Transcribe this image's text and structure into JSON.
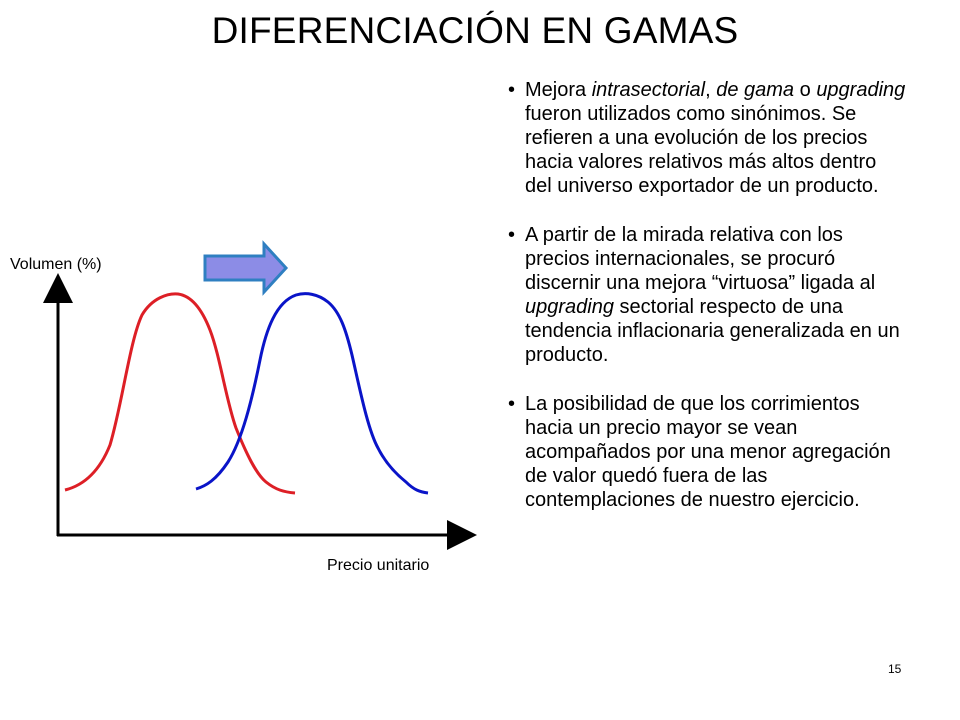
{
  "slide": {
    "title": "DIFERENCIACIÓN EN GAMAS",
    "page_number": "15"
  },
  "diagram": {
    "y_axis_label": "Volumen (%)",
    "x_axis_label": "Precio unitario",
    "curve_colors": {
      "before": "#dd1f26",
      "after": "#0a14c8"
    },
    "arrow_fill": "#8c8ce6",
    "arrow_stroke": "#2f7fc1"
  },
  "bullets": [
    {
      "parts": [
        {
          "t": "Mejora ",
          "i": false
        },
        {
          "t": "intrasectorial",
          "i": true
        },
        {
          "t": ", ",
          "i": false
        },
        {
          "t": "de gama",
          "i": true
        },
        {
          "t": " o ",
          "i": false
        },
        {
          "t": "upgrading",
          "i": true
        },
        {
          "t": " fueron utilizados como sinónimos. Se refieren a una evolución de los precios hacia valores relativos más altos dentro del universo exportador de un producto.",
          "i": false
        }
      ]
    },
    {
      "parts": [
        {
          "t": "A partir de la mirada relativa con los precios internacionales, se procuró discernir una mejora “virtuosa” ligada al ",
          "i": false
        },
        {
          "t": "upgrading",
          "i": true
        },
        {
          "t": " sectorial respecto de una tendencia inflacionaria generalizada en un producto.",
          "i": false
        }
      ]
    },
    {
      "parts": [
        {
          "t": "La posibilidad de que los corrimientos hacia un precio mayor se vean acompañados por una menor agregación de valor quedó fuera de las contemplaciones de nuestro ejercicio.",
          "i": false
        }
      ]
    }
  ]
}
